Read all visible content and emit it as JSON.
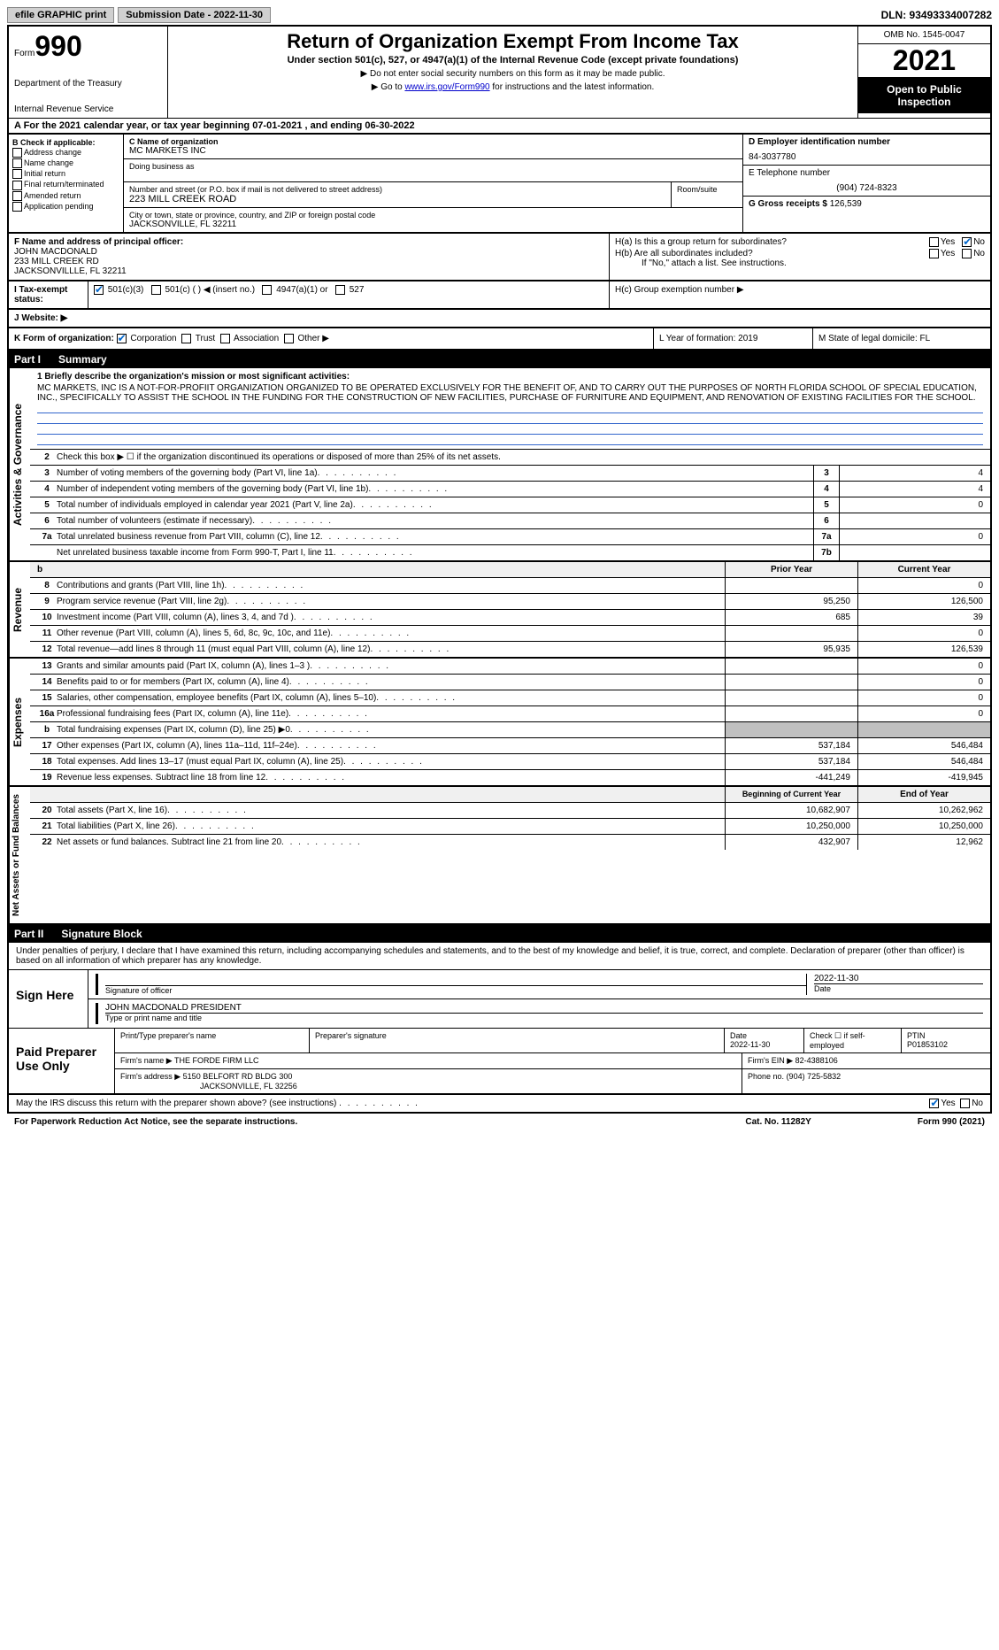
{
  "topbar": {
    "efile": "efile GRAPHIC print",
    "submission": "Submission Date - 2022-11-30",
    "dln": "DLN: 93493334007282"
  },
  "header": {
    "form_label": "Form",
    "form_number": "990",
    "dept": "Department of the Treasury",
    "irs": "Internal Revenue Service",
    "title": "Return of Organization Exempt From Income Tax",
    "subtitle": "Under section 501(c), 527, or 4947(a)(1) of the Internal Revenue Code (except private foundations)",
    "inst1": "▶ Do not enter social security numbers on this form as it may be made public.",
    "inst2_pre": "▶ Go to ",
    "inst2_link": "www.irs.gov/Form990",
    "inst2_post": " for instructions and the latest information.",
    "omb": "OMB No. 1545-0047",
    "year": "2021",
    "open": "Open to Public Inspection"
  },
  "section_a": "A  For the 2021 calendar year, or tax year beginning 07-01-2021    , and ending 06-30-2022",
  "section_b": {
    "label": "B Check if applicable:",
    "opts": [
      "Address change",
      "Name change",
      "Initial return",
      "Final return/terminated",
      "Amended return",
      "Application pending"
    ]
  },
  "section_c": {
    "name_label": "C Name of organization",
    "name": "MC MARKETS INC",
    "dba": "Doing business as",
    "addr_label": "Number and street (or P.O. box if mail is not delivered to street address)",
    "room_label": "Room/suite",
    "addr": "223 MILL CREEK ROAD",
    "city_label": "City or town, state or province, country, and ZIP or foreign postal code",
    "city": "JACKSONVILLE, FL  32211"
  },
  "section_d": {
    "ein_label": "D Employer identification number",
    "ein": "84-3037780",
    "phone_label": "E Telephone number",
    "phone": "(904) 724-8323",
    "gross_label": "G Gross receipts $",
    "gross": "126,539"
  },
  "section_f": {
    "label": "F  Name and address of principal officer:",
    "name": "JOHN MACDONALD",
    "addr1": "233 MILL CREEK RD",
    "addr2": "JACKSONVILLLE, FL  32211"
  },
  "section_h": {
    "ha": "H(a)  Is this a group return for subordinates?",
    "hb": "H(b)  Are all subordinates included?",
    "hb_note": "If \"No,\" attach a list. See instructions.",
    "hc": "H(c)  Group exemption number ▶",
    "yes": "Yes",
    "no": "No"
  },
  "section_i": {
    "label": "I  Tax-exempt status:",
    "opts": [
      "501(c)(3)",
      "501(c) (   ) ◀ (insert no.)",
      "4947(a)(1) or",
      "527"
    ]
  },
  "section_j": "J  Website: ▶",
  "section_k": {
    "label": "K Form of organization:",
    "opts": [
      "Corporation",
      "Trust",
      "Association",
      "Other ▶"
    ]
  },
  "section_l": "L Year of formation: 2019",
  "section_m": "M State of legal domicile: FL",
  "part1": {
    "label": "Part I",
    "title": "Summary",
    "vert1": "Activities & Governance",
    "mission_label": "1  Briefly describe the organization's mission or most significant activities:",
    "mission": "MC MARKETS, INC IS A NOT-FOR-PROFIIT ORGANIZATION ORGANIZED TO BE OPERATED EXCLUSIVELY FOR THE BENEFIT OF, AND TO CARRY OUT THE PURPOSES OF NORTH FLORIDA SCHOOL OF SPECIAL EDUCATION, INC., SPECIFICALLY TO ASSIST THE SCHOOL IN THE FUNDING FOR THE CONSTRUCTION OF NEW FACILITIES, PURCHASE OF FURNITURE AND EQUIPMENT, AND RENOVATION OF EXISTING FACILITIES FOR THE SCHOOL.",
    "line2": "Check this box ▶ ☐  if the organization discontinued its operations or disposed of more than 25% of its net assets.",
    "rows": [
      {
        "n": "3",
        "t": "Number of voting members of the governing body (Part VI, line 1a)",
        "k": "3",
        "v": "4"
      },
      {
        "n": "4",
        "t": "Number of independent voting members of the governing body (Part VI, line 1b)",
        "k": "4",
        "v": "4"
      },
      {
        "n": "5",
        "t": "Total number of individuals employed in calendar year 2021 (Part V, line 2a)",
        "k": "5",
        "v": "0"
      },
      {
        "n": "6",
        "t": "Total number of volunteers (estimate if necessary)",
        "k": "6",
        "v": ""
      },
      {
        "n": "7a",
        "t": "Total unrelated business revenue from Part VIII, column (C), line 12",
        "k": "7a",
        "v": "0"
      },
      {
        "n": "",
        "t": "Net unrelated business taxable income from Form 990-T, Part I, line 11",
        "k": "7b",
        "v": ""
      }
    ],
    "vert2": "Revenue",
    "prior_h": "Prior Year",
    "current_h": "Current Year",
    "rev_rows": [
      {
        "n": "8",
        "t": "Contributions and grants (Part VIII, line 1h)",
        "p": "",
        "c": "0"
      },
      {
        "n": "9",
        "t": "Program service revenue (Part VIII, line 2g)",
        "p": "95,250",
        "c": "126,500"
      },
      {
        "n": "10",
        "t": "Investment income (Part VIII, column (A), lines 3, 4, and 7d )",
        "p": "685",
        "c": "39"
      },
      {
        "n": "11",
        "t": "Other revenue (Part VIII, column (A), lines 5, 6d, 8c, 9c, 10c, and 11e)",
        "p": "",
        "c": "0"
      },
      {
        "n": "12",
        "t": "Total revenue—add lines 8 through 11 (must equal Part VIII, column (A), line 12)",
        "p": "95,935",
        "c": "126,539"
      }
    ],
    "vert3": "Expenses",
    "exp_rows": [
      {
        "n": "13",
        "t": "Grants and similar amounts paid (Part IX, column (A), lines 1–3 )",
        "p": "",
        "c": "0"
      },
      {
        "n": "14",
        "t": "Benefits paid to or for members (Part IX, column (A), line 4)",
        "p": "",
        "c": "0"
      },
      {
        "n": "15",
        "t": "Salaries, other compensation, employee benefits (Part IX, column (A), lines 5–10)",
        "p": "",
        "c": "0"
      },
      {
        "n": "16a",
        "t": "Professional fundraising fees (Part IX, column (A), line 11e)",
        "p": "",
        "c": "0"
      },
      {
        "n": "b",
        "t": "Total fundraising expenses (Part IX, column (D), line 25) ▶0",
        "p": "GRAY",
        "c": "GRAY"
      },
      {
        "n": "17",
        "t": "Other expenses (Part IX, column (A), lines 11a–11d, 11f–24e)",
        "p": "537,184",
        "c": "546,484"
      },
      {
        "n": "18",
        "t": "Total expenses. Add lines 13–17 (must equal Part IX, column (A), line 25)",
        "p": "537,184",
        "c": "546,484"
      },
      {
        "n": "19",
        "t": "Revenue less expenses. Subtract line 18 from line 12",
        "p": "-441,249",
        "c": "-419,945"
      }
    ],
    "vert4": "Net Assets or Fund Balances",
    "na_prior_h": "Beginning of Current Year",
    "na_current_h": "End of Year",
    "na_rows": [
      {
        "n": "20",
        "t": "Total assets (Part X, line 16)",
        "p": "10,682,907",
        "c": "10,262,962"
      },
      {
        "n": "21",
        "t": "Total liabilities (Part X, line 26)",
        "p": "10,250,000",
        "c": "10,250,000"
      },
      {
        "n": "22",
        "t": "Net assets or fund balances. Subtract line 21 from line 20",
        "p": "432,907",
        "c": "12,962"
      }
    ]
  },
  "part2": {
    "label": "Part II",
    "title": "Signature Block",
    "intro": "Under penalties of perjury, I declare that I have examined this return, including accompanying schedules and statements, and to the best of my knowledge and belief, it is true, correct, and complete. Declaration of preparer (other than officer) is based on all information of which preparer has any knowledge.",
    "sign_here": "Sign Here",
    "sig_officer": "Signature of officer",
    "sig_date": "2022-11-30",
    "date_label": "Date",
    "officer_name": "JOHN MACDONALD  PRESIDENT",
    "type_name": "Type or print name and title",
    "paid": "Paid Preparer Use Only",
    "prep_name_label": "Print/Type preparer's name",
    "prep_sig_label": "Preparer's signature",
    "prep_date_label": "Date",
    "prep_date": "2022-11-30",
    "self_emp": "Check ☐ if self-employed",
    "ptin_label": "PTIN",
    "ptin": "P01853102",
    "firm_name_label": "Firm's name    ▶",
    "firm_name": "THE FORDE FIRM LLC",
    "firm_ein_label": "Firm's EIN ▶",
    "firm_ein": "82-4388106",
    "firm_addr_label": "Firm's address ▶",
    "firm_addr1": "5150 BELFORT RD BLDG 300",
    "firm_addr2": "JACKSONVILLE, FL  32256",
    "firm_phone_label": "Phone no.",
    "firm_phone": "(904) 725-5832",
    "discuss": "May the IRS discuss this return with the preparer shown above? (see instructions)",
    "yes": "Yes",
    "no": "No"
  },
  "footer": {
    "paperwork": "For Paperwork Reduction Act Notice, see the separate instructions.",
    "cat": "Cat. No. 11282Y",
    "form": "Form 990 (2021)"
  }
}
